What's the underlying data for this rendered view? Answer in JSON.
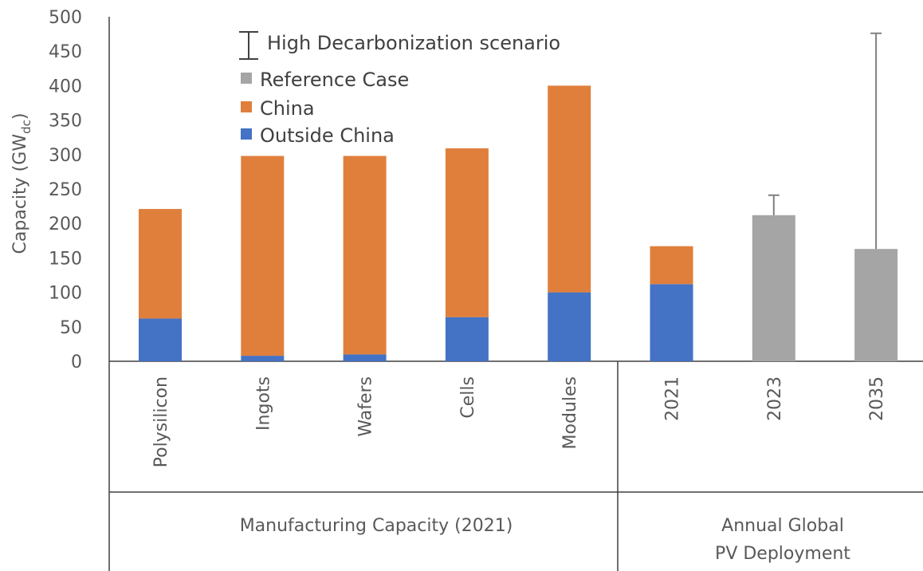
{
  "chart_data": {
    "type": "bar",
    "stacked": true,
    "categories": [
      "Polysilicon",
      "Ingots",
      "Wafers",
      "Cells",
      "Modules",
      "2021",
      "2023",
      "2035"
    ],
    "series": [
      {
        "name": "Outside China",
        "color": "#4472C4",
        "values": [
          62,
          8,
          10,
          64,
          100,
          112,
          0,
          0
        ]
      },
      {
        "name": "China",
        "color": "#E07F3C",
        "values": [
          159,
          290,
          288,
          245,
          300,
          55,
          0,
          0
        ]
      },
      {
        "name": "Reference Case",
        "color": "#A5A5A5",
        "values": [
          0,
          0,
          0,
          0,
          0,
          0,
          212,
          163
        ]
      }
    ],
    "error_bars": {
      "name": "High Decarbonization scenario",
      "categories": [
        "2023",
        "2035"
      ],
      "values": [
        241,
        476
      ]
    },
    "ylabel_main": "Capacity (GW",
    "ylabel_sub": "dc",
    "ylabel_close": ")",
    "ylim": [
      0,
      500
    ],
    "yticks": [
      "0",
      "50",
      "100",
      "150",
      "200",
      "250",
      "300",
      "350",
      "400",
      "450",
      "500"
    ],
    "groups": [
      {
        "label_lines": [
          "Manufacturing Capacity (2021)"
        ]
      },
      {
        "label_lines": [
          "Annual Global",
          "PV Deployment"
        ]
      }
    ],
    "legend": [
      {
        "name": "High Decarbonization scenario",
        "kind": "errorbar"
      },
      {
        "name": "Reference Case",
        "kind": "square",
        "color": "#A5A5A5"
      },
      {
        "name": "China",
        "kind": "square",
        "color": "#E07F3C"
      },
      {
        "name": "Outside China",
        "kind": "square",
        "color": "#4472C4"
      }
    ],
    "legend_position": "top-left",
    "grid": false
  }
}
